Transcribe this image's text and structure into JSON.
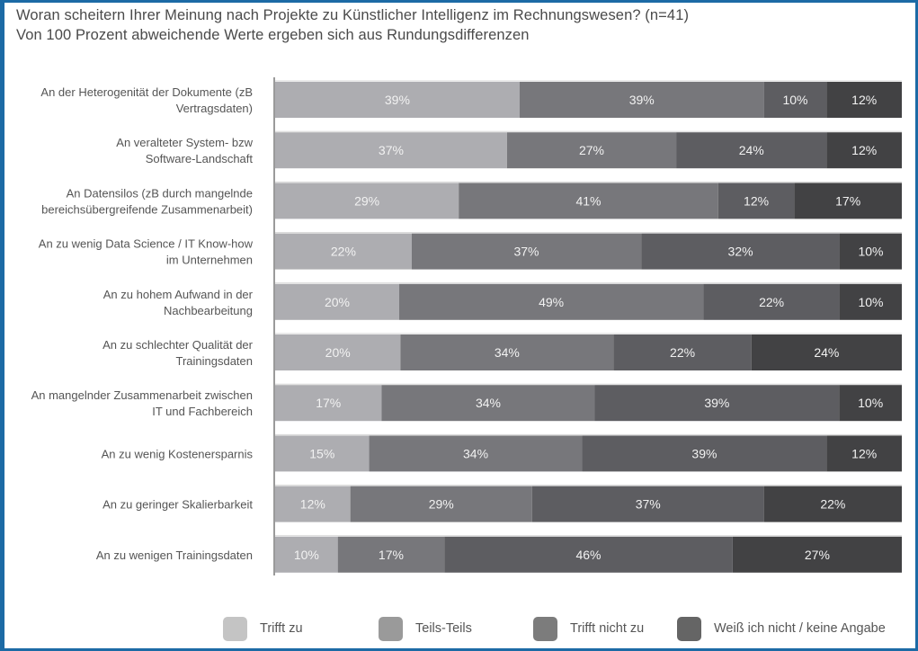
{
  "colors": {
    "frame": "#1c6aa5",
    "series": [
      "#adadb1",
      "#77777b",
      "#5d5d61",
      "#424244"
    ],
    "legend_swatches": [
      "#c4c4c4",
      "#9a9a9a",
      "#7c7c7c",
      "#656565"
    ]
  },
  "chart_data": {
    "type": "bar",
    "orientation": "horizontal",
    "stacked": true,
    "title": "Woran scheitern Ihrer Meinung nach Projekte zu Künstlicher Intelligenz im Rechnungswesen? (n=41)",
    "subtitle": "Von 100 Prozent abweichende Werte ergeben sich aus Rundungsdifferenzen",
    "xlabel": "",
    "ylabel": "",
    "xlim": [
      0,
      100
    ],
    "grid": false,
    "legend_position": "bottom",
    "categories": [
      [
        "An der Heterogenität der Dokumente (zB",
        "Vertragsdaten)"
      ],
      [
        "An veralteter System- bzw",
        "Software-Landschaft"
      ],
      [
        "An Datensilos (zB durch mangelnde",
        "bereichsübergreifende Zusammenarbeit)"
      ],
      [
        "An zu wenig Data Science / IT Know-how",
        "im Unternehmen"
      ],
      [
        "An zu hohem Aufwand in der",
        "Nachbearbeitung"
      ],
      [
        "An zu schlechter Qualität der",
        "Trainingsdaten"
      ],
      [
        "An mangelnder Zusammenarbeit zwischen",
        "IT und Fachbereich"
      ],
      [
        "An zu wenig Kostenersparnis"
      ],
      [
        "An zu geringer Skalierbarkeit"
      ],
      [
        "An zu wenigen Trainingsdaten"
      ]
    ],
    "series": [
      {
        "name": "Trifft zu",
        "values": [
          39,
          37,
          29,
          22,
          20,
          20,
          17,
          15,
          12,
          10
        ]
      },
      {
        "name": "Teils-Teils",
        "values": [
          39,
          27,
          41,
          37,
          49,
          34,
          34,
          34,
          29,
          17
        ]
      },
      {
        "name": "Trifft nicht zu",
        "values": [
          10,
          24,
          12,
          32,
          22,
          22,
          39,
          39,
          37,
          46
        ]
      },
      {
        "name": "Weiß ich nicht / keine Angabe",
        "values": [
          12,
          12,
          17,
          10,
          10,
          24,
          10,
          12,
          22,
          27
        ]
      }
    ],
    "value_suffix": "%"
  }
}
